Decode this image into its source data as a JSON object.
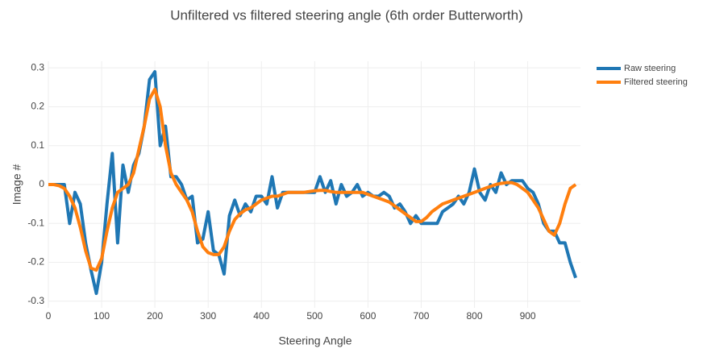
{
  "chart_data": {
    "type": "line",
    "title": "Unfiltered vs filtered steering angle (6th order Butterworth)",
    "x_label": "Steering Angle",
    "y_label": "Image #",
    "x": [
      0,
      10,
      20,
      30,
      40,
      50,
      60,
      70,
      80,
      90,
      100,
      110,
      120,
      130,
      140,
      150,
      160,
      170,
      180,
      190,
      200,
      210,
      220,
      230,
      240,
      250,
      260,
      270,
      280,
      290,
      300,
      310,
      320,
      330,
      340,
      350,
      360,
      370,
      380,
      390,
      400,
      410,
      420,
      430,
      440,
      450,
      460,
      470,
      480,
      490,
      500,
      510,
      520,
      530,
      540,
      550,
      560,
      570,
      580,
      590,
      600,
      610,
      620,
      630,
      640,
      650,
      660,
      670,
      680,
      690,
      700,
      710,
      720,
      730,
      740,
      750,
      760,
      770,
      780,
      790,
      800,
      810,
      820,
      830,
      840,
      850,
      860,
      870,
      880,
      890,
      900,
      910,
      920,
      930,
      940,
      950,
      960,
      970,
      980,
      990
    ],
    "series": [
      {
        "name": "Raw steering",
        "color": "#1f77b4",
        "values": [
          0,
          0,
          0,
          0,
          -0.1,
          -0.02,
          -0.05,
          -0.15,
          -0.22,
          -0.28,
          -0.2,
          -0.05,
          0.08,
          -0.15,
          0.05,
          -0.02,
          0.05,
          0.08,
          0.15,
          0.27,
          0.29,
          0.1,
          0.15,
          0.02,
          0.02,
          0,
          -0.04,
          -0.03,
          -0.15,
          -0.14,
          -0.07,
          -0.17,
          -0.18,
          -0.23,
          -0.08,
          -0.04,
          -0.08,
          -0.05,
          -0.07,
          -0.03,
          -0.03,
          -0.05,
          0.02,
          -0.06,
          -0.02,
          -0.02,
          -0.02,
          -0.02,
          -0.02,
          -0.02,
          -0.02,
          0.02,
          -0.02,
          0.01,
          -0.05,
          0,
          -0.03,
          -0.02,
          0,
          -0.03,
          -0.02,
          -0.03,
          -0.03,
          -0.02,
          -0.03,
          -0.06,
          -0.05,
          -0.07,
          -0.1,
          -0.08,
          -0.1,
          -0.1,
          -0.1,
          -0.1,
          -0.07,
          -0.06,
          -0.05,
          -0.03,
          -0.05,
          -0.02,
          0.04,
          -0.02,
          -0.04,
          0,
          -0.02,
          0.03,
          0,
          0.01,
          0.01,
          0.01,
          -0.01,
          -0.02,
          -0.05,
          -0.1,
          -0.12,
          -0.12,
          -0.15,
          -0.15,
          -0.2,
          -0.24
        ]
      },
      {
        "name": "Filtered steering",
        "color": "#ff7f0e",
        "values": [
          0,
          0,
          -0.003,
          -0.01,
          -0.03,
          -0.06,
          -0.11,
          -0.17,
          -0.215,
          -0.22,
          -0.19,
          -0.12,
          -0.06,
          -0.02,
          -0.01,
          0,
          0.03,
          0.09,
          0.15,
          0.22,
          0.245,
          0.2,
          0.1,
          0.03,
          0,
          -0.02,
          -0.04,
          -0.07,
          -0.12,
          -0.16,
          -0.175,
          -0.18,
          -0.18,
          -0.16,
          -0.12,
          -0.09,
          -0.075,
          -0.065,
          -0.06,
          -0.05,
          -0.04,
          -0.035,
          -0.03,
          -0.03,
          -0.025,
          -0.02,
          -0.02,
          -0.02,
          -0.02,
          -0.018,
          -0.016,
          -0.015,
          -0.015,
          -0.018,
          -0.02,
          -0.02,
          -0.02,
          -0.02,
          -0.02,
          -0.02,
          -0.025,
          -0.03,
          -0.035,
          -0.04,
          -0.045,
          -0.055,
          -0.065,
          -0.075,
          -0.085,
          -0.095,
          -0.095,
          -0.085,
          -0.07,
          -0.06,
          -0.05,
          -0.045,
          -0.04,
          -0.035,
          -0.03,
          -0.025,
          -0.02,
          -0.015,
          -0.01,
          -0.005,
          0,
          0.003,
          0.005,
          0.005,
          0,
          -0.01,
          -0.02,
          -0.04,
          -0.06,
          -0.09,
          -0.12,
          -0.13,
          -0.1,
          -0.05,
          -0.01,
          0
        ]
      }
    ],
    "xlim": [
      0,
      999
    ],
    "xticks": [
      0,
      100,
      200,
      300,
      400,
      500,
      600,
      700,
      800,
      900
    ],
    "ylim": [
      -0.317,
      0.317
    ],
    "yticks": [
      -0.3,
      -0.2,
      -0.1,
      0,
      0.1,
      0.2,
      0.3
    ],
    "grid": true,
    "legend": "top-right"
  }
}
